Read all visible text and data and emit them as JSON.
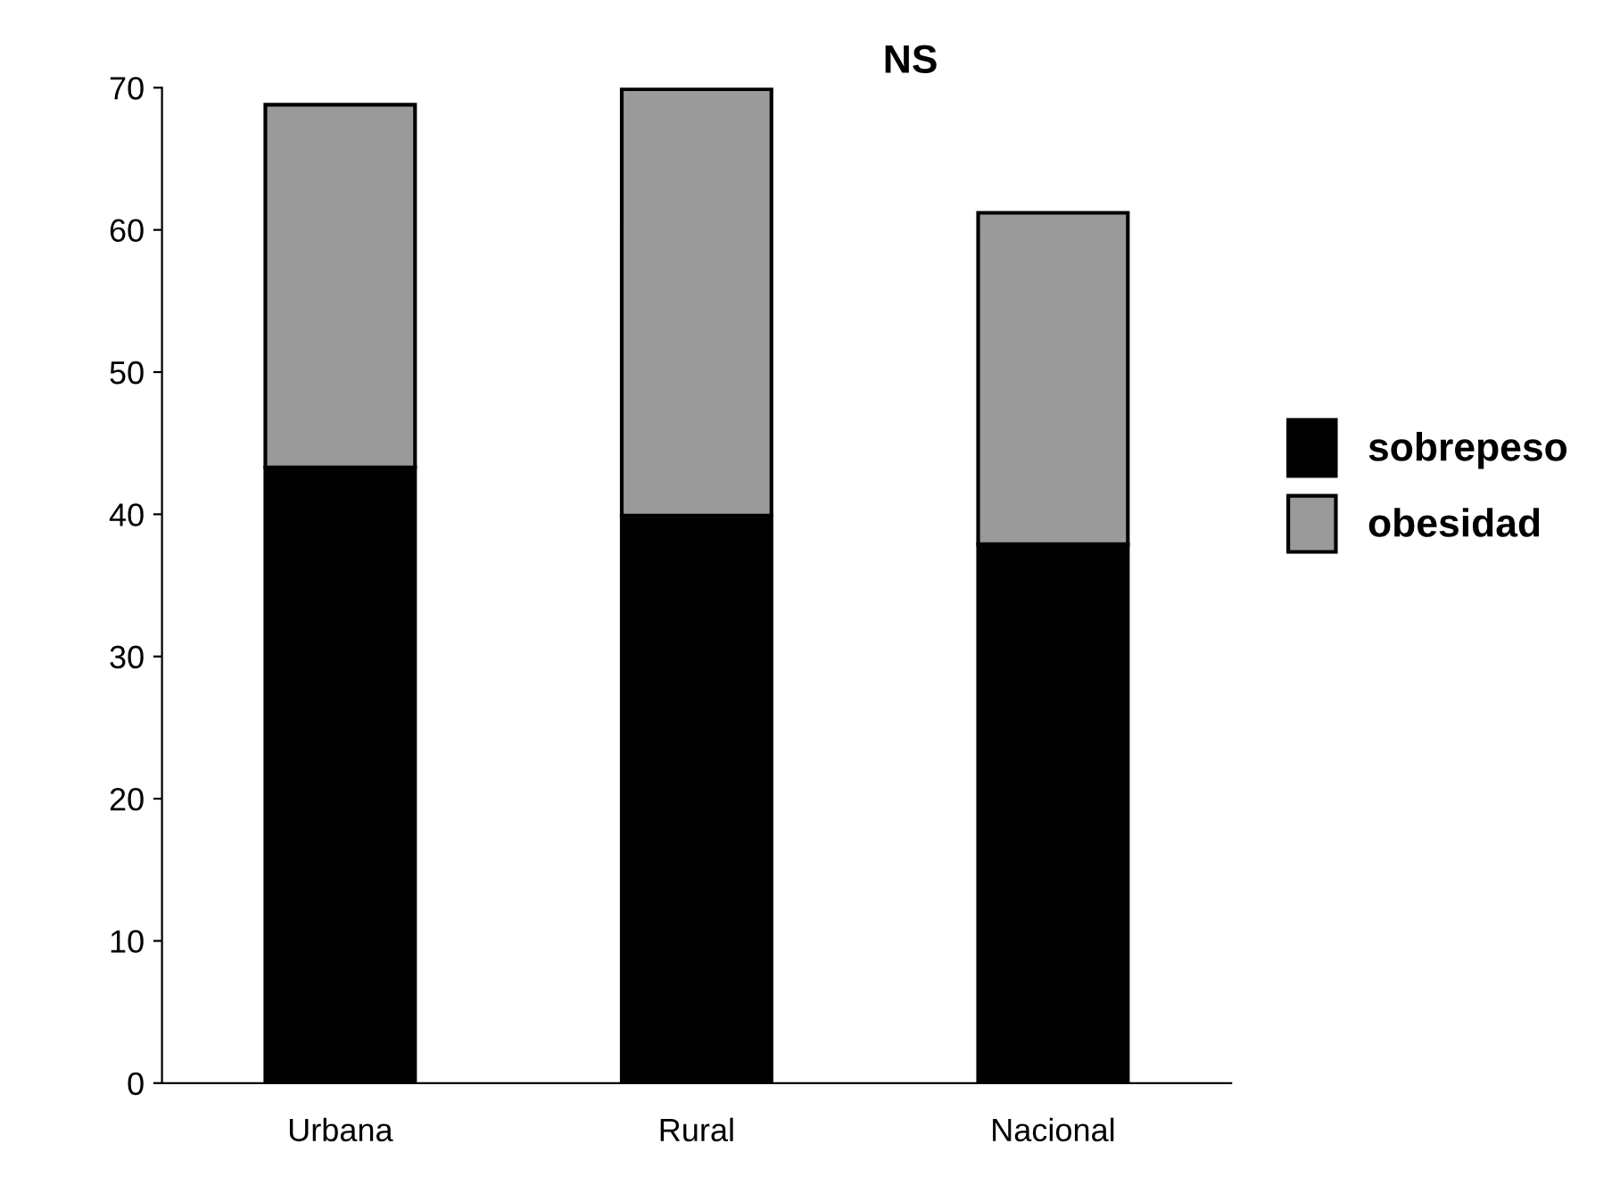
{
  "chart_data": {
    "type": "bar",
    "title": "NS",
    "categories": [
      "Urbana",
      "Rural",
      "Nacional"
    ],
    "stacked": true,
    "series": [
      {
        "name": "sobrepeso",
        "color": "#000000",
        "values": [
          43.3,
          39.9,
          37.9
        ]
      },
      {
        "name": "obesidad",
        "color": "#9a9a9a",
        "values": [
          25.5,
          30.0,
          23.3
        ]
      }
    ],
    "ylim": [
      0,
      70
    ],
    "yticks": [
      0,
      10,
      20,
      30,
      40,
      50,
      60,
      70
    ],
    "grid": false,
    "legend": "right"
  }
}
